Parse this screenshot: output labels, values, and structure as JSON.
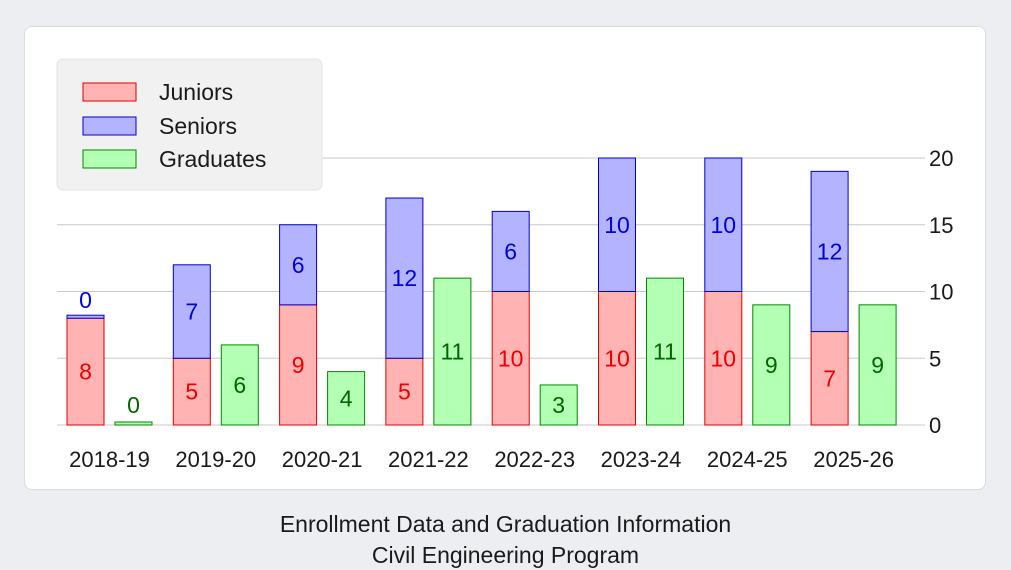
{
  "caption": {
    "line1": "Enrollment Data and Graduation Information",
    "line2": "Civil Engineering Program"
  },
  "colors": {
    "juniors_fill": "#ffb3b3",
    "juniors_stroke": "#e00000",
    "juniors_label": "#ee0000",
    "seniors_fill": "#b3b3ff",
    "seniors_stroke": "#0000cc",
    "seniors_label": "#0000dd",
    "graduates_fill": "#b3ffb3",
    "graduates_stroke": "#008800",
    "graduates_label": "#006600"
  },
  "chart_data": {
    "type": "bar",
    "stacked_groups": [
      [
        "Juniors",
        "Seniors"
      ],
      [
        "Graduates"
      ]
    ],
    "categories": [
      "2018-19",
      "2019-20",
      "2020-21",
      "2021-22",
      "2022-23",
      "2023-24",
      "2024-25",
      "2025-26"
    ],
    "series": [
      {
        "name": "Juniors",
        "values": [
          8,
          5,
          9,
          5,
          10,
          10,
          10,
          7
        ]
      },
      {
        "name": "Seniors",
        "values": [
          0,
          7,
          6,
          12,
          6,
          10,
          10,
          12
        ]
      },
      {
        "name": "Graduates",
        "values": [
          0,
          6,
          4,
          11,
          3,
          11,
          9,
          9
        ]
      }
    ],
    "yaxis_side": "right",
    "yticks": [
      0,
      5,
      10,
      15,
      20
    ],
    "ylim": [
      0,
      20
    ],
    "grid": true,
    "legend": "top-left",
    "data_labels": true
  }
}
